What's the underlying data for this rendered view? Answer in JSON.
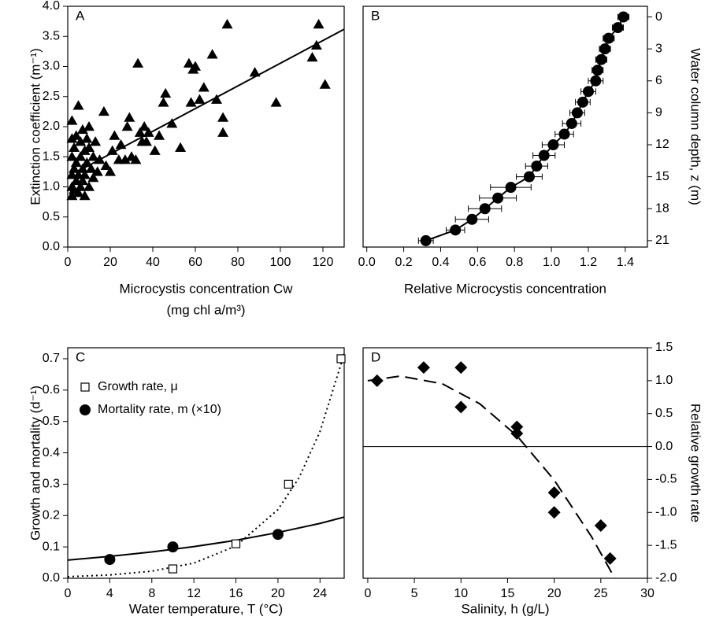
{
  "chart_data": [
    {
      "type": "scatter",
      "panel_label": "A",
      "x_label": [
        "Microcystis concentration Cw",
        "(mg chl a/m³)"
      ],
      "y_label": "Extinction coefficient (m⁻¹)",
      "y_axis_side": "left",
      "xlim": [
        0,
        130
      ],
      "ylim": [
        0,
        4
      ],
      "xticks": [
        0,
        20,
        40,
        60,
        80,
        100,
        120
      ],
      "yticks": [
        {
          "value": 0,
          "label": "0.0"
        },
        0.5,
        {
          "value": 1,
          "label": "1.0"
        },
        1.5,
        {
          "value": 2,
          "label": "2.0"
        },
        2.5,
        {
          "value": 3,
          "label": "3.0"
        },
        3.5,
        {
          "value": 4,
          "label": "4.0"
        }
      ],
      "series": [
        {
          "marker": "triangle",
          "color": "#000000",
          "x": [
            2,
            2,
            2,
            2,
            2,
            2,
            3,
            3,
            3,
            4,
            4,
            4,
            5,
            5,
            5,
            6,
            6,
            6,
            7,
            7,
            7,
            8,
            8,
            8,
            9,
            9,
            10,
            10,
            10,
            11,
            12,
            12,
            13,
            14,
            15,
            17,
            18,
            20,
            21,
            22,
            24,
            25,
            27,
            28,
            29,
            30,
            32,
            33,
            34,
            35,
            36,
            37,
            38,
            41,
            43,
            45,
            46,
            49,
            53,
            57,
            58,
            59,
            60,
            62,
            64,
            68,
            70,
            73,
            73,
            75,
            88,
            98,
            115,
            117,
            118,
            121
          ],
          "values": [
            0.85,
            1.0,
            1.2,
            1.5,
            1.8,
            2.1,
            1.3,
            0.95,
            1.65,
            1.1,
            1.4,
            1.85,
            2.35,
            1.2,
            0.9,
            1.5,
            1.0,
            1.75,
            1.3,
            1.95,
            1.1,
            1.6,
            0.85,
            1.2,
            1.4,
            1.8,
            1.0,
            1.65,
            2.0,
            1.3,
            1.5,
            1.15,
            1.75,
            1.25,
            1.45,
            2.25,
            1.35,
            1.25,
            1.6,
            1.85,
            1.45,
            1.7,
            1.45,
            2.0,
            2.15,
            1.5,
            1.45,
            3.05,
            1.9,
            1.75,
            2.0,
            1.75,
            1.9,
            1.6,
            1.85,
            2.4,
            2.55,
            2.05,
            1.65,
            3.05,
            2.4,
            2.95,
            3.0,
            2.45,
            2.65,
            3.2,
            2.45,
            2.15,
            1.9,
            3.7,
            2.9,
            2.4,
            3.15,
            3.35,
            3.7,
            2.7
          ]
        },
        {
          "marker": "none",
          "line": "solid",
          "color": "#000000",
          "x": [
            8,
            130
          ],
          "values": [
            1.32,
            3.62
          ]
        }
      ]
    },
    {
      "type": "scatter",
      "panel_label": "B",
      "x_label": [
        "Relative Microcystis concentration"
      ],
      "y_label": "Water column depth, z (m)",
      "y_axis_side": "right",
      "xlim": [
        -0.02,
        1.52
      ],
      "ylim": [
        21.6,
        -1
      ],
      "xticks": [
        {
          "value": 0,
          "label": "0.0"
        },
        0.2,
        0.4,
        0.6,
        0.8,
        {
          "value": 1,
          "label": "1.0"
        },
        1.2,
        1.4
      ],
      "yticks": [
        0,
        3,
        6,
        9,
        12,
        15,
        18,
        21
      ],
      "series": [
        {
          "marker": "circle",
          "line": "solid",
          "color": "#000000",
          "x": [
            1.39,
            1.36,
            1.31,
            1.29,
            1.27,
            1.25,
            1.24,
            1.2,
            1.17,
            1.14,
            1.11,
            1.07,
            1.01,
            0.96,
            0.92,
            0.88,
            0.78,
            0.71,
            0.64,
            0.57,
            0.48,
            0.32
          ],
          "values": [
            0,
            1,
            2,
            3,
            4,
            5,
            6,
            7,
            8,
            9,
            10,
            11,
            12,
            13,
            14,
            15,
            16,
            17,
            18,
            19,
            20,
            21
          ],
          "x_errors": [
            0.03,
            0.03,
            0.03,
            0.03,
            0.03,
            0.03,
            0.04,
            0.04,
            0.04,
            0.04,
            0.05,
            0.05,
            0.06,
            0.06,
            0.06,
            0.07,
            0.11,
            0.1,
            0.09,
            0.09,
            0.05,
            0.04
          ]
        }
      ]
    },
    {
      "type": "scatter",
      "panel_label": "C",
      "x_label": [
        "Water temperature, T (°C)"
      ],
      "y_label": "Growth and mortality (d⁻¹)",
      "y_axis_side": "left",
      "xlim": [
        0,
        26.3
      ],
      "ylim": [
        0,
        0.735
      ],
      "xticks": [
        0,
        4,
        8,
        12,
        16,
        20,
        24
      ],
      "yticks": [
        {
          "value": 0,
          "label": "0.0"
        },
        0.1,
        0.2,
        0.3,
        0.4,
        0.5,
        0.6,
        0.7
      ],
      "series": [
        {
          "marker": "none",
          "line": "dotted",
          "color": "#000000",
          "x": [
            0,
            4,
            8,
            12,
            16,
            20,
            22,
            24,
            26,
            26.5
          ],
          "values": [
            0.005,
            0.0106,
            0.0227,
            0.0483,
            0.103,
            0.219,
            0.32,
            0.468,
            0.683,
            0.74
          ]
        },
        {
          "marker": "none",
          "line": "solid",
          "color": "#000000",
          "x": [
            0,
            4,
            8,
            12,
            16,
            20,
            24,
            26.3
          ],
          "values": [
            0.058,
            0.0698,
            0.0839,
            0.101,
            0.121,
            0.146,
            0.175,
            0.195
          ]
        },
        {
          "name": "Growth rate, μ",
          "marker": "square",
          "color": "#000000",
          "x": [
            10,
            16,
            21,
            26
          ],
          "values": [
            0.03,
            0.11,
            0.3,
            0.7
          ]
        },
        {
          "name": "Mortality rate, m (×10)",
          "marker": "circle",
          "color": "#000000",
          "x": [
            4,
            10,
            20
          ],
          "values": [
            0.06,
            0.1,
            0.14
          ]
        }
      ]
    },
    {
      "type": "scatter",
      "panel_label": "D",
      "x_label": [
        "Salinity, h (g/L)"
      ],
      "y_label": "Relative growth rate",
      "y_axis_side": "right",
      "xlim": [
        -0.5,
        30
      ],
      "ylim": [
        -2,
        1.5
      ],
      "hlines": [
        0
      ],
      "xticks": [
        0,
        5,
        10,
        15,
        20,
        25,
        30
      ],
      "yticks": [
        {
          "value": -2,
          "label": "-2.0"
        },
        -1.5,
        {
          "value": -1,
          "label": "-1.0"
        },
        -0.5,
        {
          "value": 0,
          "label": "0.0"
        },
        0.5,
        {
          "value": 1,
          "label": "1.0"
        },
        1.5
      ],
      "series": [
        {
          "marker": "diamond",
          "color": "#000000",
          "x": [
            1,
            6,
            10,
            10,
            16,
            16,
            20,
            20,
            25,
            26
          ],
          "values": [
            1.0,
            1.2,
            1.2,
            0.6,
            0.3,
            0.2,
            -0.7,
            -1.0,
            -1.2,
            -1.7
          ]
        },
        {
          "marker": "none",
          "line": "dashed",
          "color": "#000000",
          "x": [
            0,
            3.5,
            8,
            12,
            16,
            20,
            24,
            26.5
          ],
          "values": [
            1.0,
            1.07,
            0.953,
            0.651,
            0.164,
            -0.509,
            -1.367,
            -2.0
          ]
        }
      ]
    }
  ]
}
